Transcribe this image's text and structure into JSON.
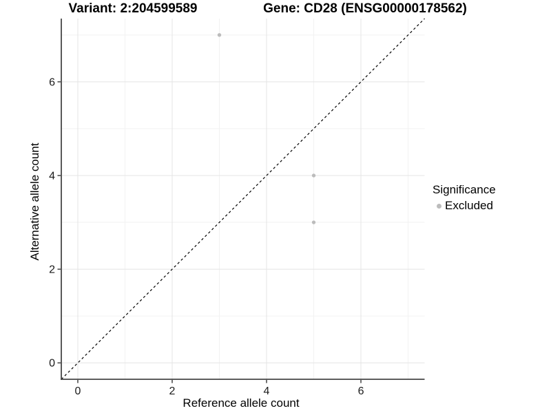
{
  "figure": {
    "title_left": "Variant: 2:204599589",
    "title_right": "Gene: CD28 (ENSG00000178562)"
  },
  "chart_data": {
    "type": "scatter",
    "xlabel": "Reference allele count",
    "ylabel": "Alternative allele count",
    "xlim": [
      -0.35,
      7.35
    ],
    "ylim": [
      -0.35,
      7.35
    ],
    "xticks": [
      0,
      2,
      4,
      6
    ],
    "yticks": [
      0,
      2,
      4,
      6
    ],
    "minor_xticks": [
      1,
      3,
      5,
      7
    ],
    "minor_yticks": [
      1,
      3,
      5,
      7
    ],
    "grid": "major and minor gridlines, light gray on white panel",
    "identity_line": {
      "type": "dashed",
      "equation": "y = x",
      "color": "#000000"
    },
    "series": [
      {
        "name": "Excluded",
        "color": "#bcbcbc",
        "points": [
          [
            3,
            7
          ],
          [
            5,
            4
          ],
          [
            5,
            3
          ]
        ]
      }
    ],
    "legend": {
      "title": "Significance",
      "position": "right",
      "items": [
        {
          "label": "Excluded",
          "color": "#bcbcbc",
          "marker": "circle"
        }
      ]
    }
  },
  "colors": {
    "background": "#ffffff",
    "grid_major": "#e4e4e4",
    "grid_minor": "#f2f2f2",
    "axis_line": "#454545",
    "tick_mark": "#333333",
    "tick_text": "#1a1a1a",
    "point": "#bcbcbc"
  }
}
